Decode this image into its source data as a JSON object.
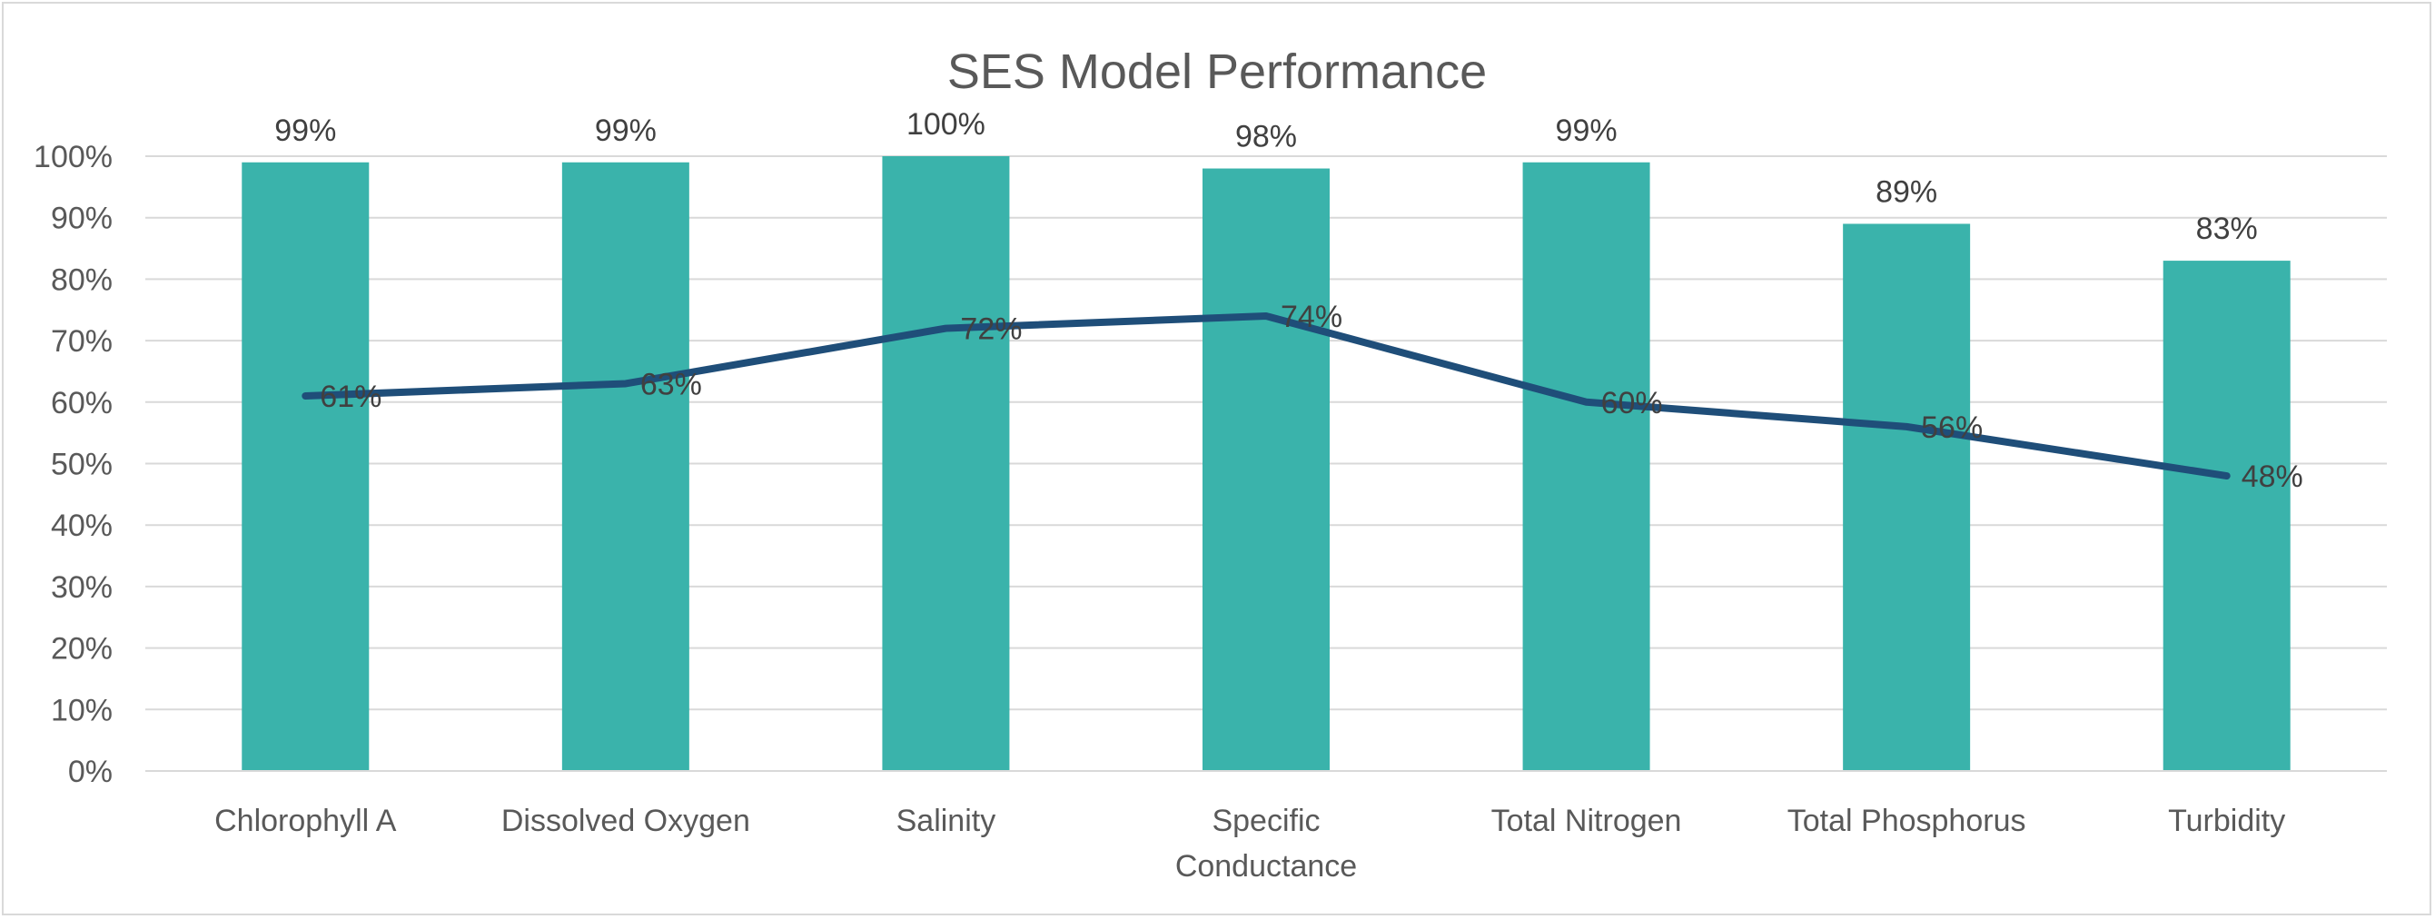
{
  "chart_data": {
    "type": "bar",
    "title": "SES Model Performance",
    "categories": [
      "Chlorophyll A",
      "Dissolved Oxygen",
      "Salinity",
      "Specific Conductance",
      "Total Nitrogen",
      "Total Phosphorus",
      "Turbidity"
    ],
    "category_lines": [
      [
        "Chlorophyll A"
      ],
      [
        "Dissolved Oxygen"
      ],
      [
        "Salinity"
      ],
      [
        "Specific",
        "Conductance"
      ],
      [
        "Total Nitrogen"
      ],
      [
        "Total Phosphorus"
      ],
      [
        "Turbidity"
      ]
    ],
    "series": [
      {
        "type": "bar",
        "values": [
          99,
          99,
          100,
          98,
          99,
          89,
          83
        ],
        "labels": [
          "99%",
          "99%",
          "100%",
          "98%",
          "99%",
          "89%",
          "83%"
        ],
        "color": "#3ab3ab"
      },
      {
        "type": "line",
        "values": [
          61,
          63,
          72,
          74,
          60,
          56,
          48
        ],
        "labels": [
          "61%",
          "63%",
          "72%",
          "74%",
          "60%",
          "56%",
          "48%"
        ],
        "color": "#1f4e79"
      }
    ],
    "ylim": [
      0,
      100
    ],
    "yticks": [
      "0%",
      "10%",
      "20%",
      "30%",
      "40%",
      "50%",
      "60%",
      "70%",
      "80%",
      "90%",
      "100%"
    ],
    "grid": true,
    "legend": "none",
    "xlabel": "",
    "ylabel": ""
  }
}
